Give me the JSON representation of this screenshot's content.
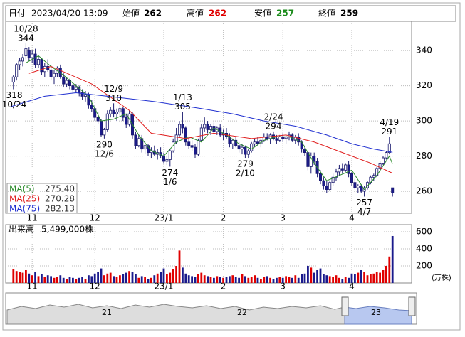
{
  "header": {
    "date_label": "日付",
    "datetime": "2023/04/20 13:09",
    "open_label": "始値",
    "open": 262,
    "high_label": "高値",
    "high": 262,
    "low_label": "安値",
    "low": 257,
    "close_label": "終値",
    "close": 259
  },
  "chart_data": {
    "type": "candlestick",
    "up_color": "#ffffff",
    "down_color": "#1a1a8c",
    "outline_color": "#1a1a6e",
    "xlim": [
      -2,
      123
    ],
    "xticks": [
      {
        "value": 6,
        "label": "11"
      },
      {
        "value": 26,
        "label": "12"
      },
      {
        "value": 48,
        "label": "23/1"
      },
      {
        "value": 67,
        "label": "2"
      },
      {
        "value": 86,
        "label": "3"
      },
      {
        "value": 108,
        "label": "4"
      }
    ],
    "ylim": [
      247.5,
      356.6
    ],
    "yticks": [
      260,
      280,
      300,
      320,
      340
    ],
    "grid": true,
    "ohlc": [
      [
        322,
        326,
        318,
        325
      ],
      [
        325,
        333,
        323,
        332
      ],
      [
        332,
        336,
        329,
        334
      ],
      [
        334,
        338,
        331,
        336
      ],
      [
        337,
        344,
        335,
        341
      ],
      [
        340,
        342,
        334,
        336
      ],
      [
        336,
        340,
        333,
        338
      ],
      [
        338,
        341,
        330,
        332
      ],
      [
        332,
        337,
        330,
        335
      ],
      [
        335,
        336,
        326,
        328
      ],
      [
        328,
        333,
        325,
        331
      ],
      [
        331,
        335,
        328,
        329
      ],
      [
        329,
        332,
        323,
        325
      ],
      [
        325,
        329,
        321,
        327
      ],
      [
        327,
        331,
        325,
        330
      ],
      [
        330,
        332,
        324,
        325
      ],
      [
        325,
        327,
        319,
        321
      ],
      [
        321,
        325,
        319,
        323
      ],
      [
        323,
        324,
        318,
        320
      ],
      [
        320,
        322,
        316,
        318
      ],
      [
        318,
        321,
        316,
        319
      ],
      [
        319,
        320,
        314,
        316
      ],
      [
        316,
        318,
        312,
        314
      ],
      [
        314,
        317,
        311,
        315
      ],
      [
        315,
        316,
        307,
        309
      ],
      [
        309,
        312,
        305,
        307
      ],
      [
        307,
        309,
        300,
        302
      ],
      [
        302,
        305,
        298,
        300
      ],
      [
        300,
        301,
        291,
        292
      ],
      [
        292,
        296,
        290,
        295
      ],
      [
        295,
        306,
        294,
        304
      ],
      [
        304,
        308,
        302,
        306
      ],
      [
        306,
        310,
        302,
        304
      ],
      [
        304,
        307,
        300,
        305
      ],
      [
        305,
        309,
        303,
        307
      ],
      [
        307,
        308,
        300,
        302
      ],
      [
        302,
        304,
        296,
        298
      ],
      [
        298,
        306,
        297,
        304
      ],
      [
        304,
        305,
        290,
        292
      ],
      [
        292,
        294,
        284,
        286
      ],
      [
        286,
        292,
        285,
        290
      ],
      [
        290,
        292,
        282,
        284
      ],
      [
        284,
        288,
        281,
        286
      ],
      [
        286,
        287,
        280,
        282
      ],
      [
        282,
        285,
        279,
        283
      ],
      [
        283,
        286,
        280,
        281
      ],
      [
        281,
        284,
        278,
        282
      ],
      [
        282,
        285,
        279,
        280
      ],
      [
        280,
        282,
        276,
        277
      ],
      [
        277,
        280,
        275,
        278
      ],
      [
        278,
        284,
        274,
        283
      ],
      [
        283,
        290,
        282,
        288
      ],
      [
        288,
        296,
        287,
        292
      ],
      [
        292,
        300,
        291,
        298
      ],
      [
        298,
        305,
        293,
        296
      ],
      [
        296,
        297,
        286,
        288
      ],
      [
        288,
        291,
        284,
        286
      ],
      [
        286,
        289,
        283,
        285
      ],
      [
        285,
        287,
        279,
        281
      ],
      [
        281,
        290,
        280,
        289
      ],
      [
        289,
        298,
        288,
        296
      ],
      [
        296,
        302,
        294,
        298
      ],
      [
        298,
        300,
        293,
        295
      ],
      [
        295,
        298,
        292,
        297
      ],
      [
        297,
        299,
        293,
        294
      ],
      [
        294,
        297,
        292,
        296
      ],
      [
        296,
        298,
        291,
        292
      ],
      [
        292,
        295,
        289,
        293
      ],
      [
        293,
        296,
        290,
        291
      ],
      [
        291,
        293,
        285,
        287
      ],
      [
        287,
        290,
        284,
        289
      ],
      [
        289,
        291,
        285,
        286
      ],
      [
        286,
        288,
        282,
        284
      ],
      [
        284,
        287,
        281,
        285
      ],
      [
        285,
        286,
        279,
        281
      ],
      [
        281,
        284,
        279,
        283
      ],
      [
        283,
        288,
        282,
        287
      ],
      [
        287,
        290,
        285,
        288
      ],
      [
        288,
        291,
        286,
        287
      ],
      [
        287,
        290,
        285,
        289
      ],
      [
        289,
        293,
        288,
        291
      ],
      [
        291,
        293,
        289,
        290
      ],
      [
        290,
        293,
        287,
        292
      ],
      [
        292,
        294,
        289,
        290
      ],
      [
        290,
        292,
        287,
        289
      ],
      [
        289,
        292,
        288,
        291
      ],
      [
        291,
        293,
        288,
        290
      ],
      [
        290,
        292,
        287,
        291
      ],
      [
        291,
        294,
        289,
        292
      ],
      [
        292,
        293,
        288,
        289
      ],
      [
        289,
        292,
        287,
        291
      ],
      [
        291,
        293,
        286,
        288
      ],
      [
        288,
        289,
        282,
        284
      ],
      [
        284,
        286,
        280,
        282
      ],
      [
        282,
        283,
        272,
        274
      ],
      [
        274,
        282,
        270,
        280
      ],
      [
        280,
        282,
        275,
        277
      ],
      [
        277,
        279,
        268,
        270
      ],
      [
        270,
        272,
        264,
        266
      ],
      [
        266,
        268,
        261,
        263
      ],
      [
        263,
        266,
        259,
        261
      ],
      [
        261,
        266,
        260,
        265
      ],
      [
        265,
        270,
        263,
        268
      ],
      [
        268,
        273,
        266,
        271
      ],
      [
        271,
        275,
        269,
        273
      ],
      [
        273,
        276,
        270,
        272
      ],
      [
        272,
        276,
        271,
        275
      ],
      [
        275,
        277,
        268,
        270
      ],
      [
        270,
        271,
        263,
        265
      ],
      [
        265,
        267,
        261,
        262
      ],
      [
        262,
        264,
        259,
        263
      ],
      [
        263,
        264,
        259,
        260
      ],
      [
        260,
        263,
        257,
        262
      ],
      [
        262,
        266,
        261,
        265
      ],
      [
        265,
        269,
        264,
        268
      ],
      [
        268,
        270,
        266,
        269
      ],
      [
        269,
        274,
        268,
        273
      ],
      [
        273,
        277,
        272,
        276
      ],
      [
        276,
        280,
        275,
        279
      ],
      [
        279,
        283,
        278,
        282
      ],
      [
        282,
        291,
        281,
        287
      ],
      [
        262,
        262,
        257,
        259
      ]
    ],
    "annotations": [
      {
        "index": 4,
        "at": "high",
        "lines": [
          "10/28",
          "344"
        ],
        "value": 344
      },
      {
        "index": 0,
        "at": "low",
        "lines": [
          "318",
          "10/24"
        ],
        "value": 318
      },
      {
        "index": 32,
        "at": "high",
        "lines": [
          "12/9",
          "310"
        ],
        "value": 310
      },
      {
        "index": 29,
        "at": "low",
        "lines": [
          "290",
          "12/6"
        ],
        "value": 290
      },
      {
        "index": 54,
        "at": "high",
        "lines": [
          "1/13",
          "305"
        ],
        "value": 305
      },
      {
        "index": 50,
        "at": "low",
        "lines": [
          "274",
          "1/6"
        ],
        "value": 274
      },
      {
        "index": 83,
        "at": "high",
        "lines": [
          "2/24",
          "294"
        ],
        "value": 294
      },
      {
        "index": 74,
        "at": "low",
        "lines": [
          "279",
          "2/10"
        ],
        "value": 279
      },
      {
        "index": 120,
        "at": "high",
        "lines": [
          "4/19",
          "291"
        ],
        "value": 291
      },
      {
        "index": 112,
        "at": "low",
        "lines": [
          "257",
          "4/7"
        ],
        "value": 257
      }
    ],
    "series": [
      {
        "name": "MA(5)",
        "color": "#2a8a2a",
        "last_label": "275.40",
        "x": [
          4,
          8,
          12,
          16,
          20,
          24,
          28,
          32,
          36,
          40,
          44,
          48,
          52,
          56,
          60,
          64,
          68,
          72,
          76,
          80,
          84,
          88,
          92,
          96,
          100,
          104,
          108,
          112,
          116,
          120,
          121
        ],
        "values": [
          333,
          337,
          331,
          326,
          320,
          314,
          300,
          301,
          304,
          292,
          283,
          280,
          288,
          291,
          288,
          296,
          292,
          287,
          284,
          289,
          291,
          291,
          288,
          276,
          266,
          269,
          272,
          261,
          269,
          280,
          275.4
        ]
      },
      {
        "name": "MA(25)",
        "color": "#e02020",
        "last_label": "270.28",
        "x": [
          5,
          12,
          25,
          37,
          44,
          55,
          64,
          76,
          87,
          96,
          105,
          114,
          121
        ],
        "values": [
          327,
          331,
          321,
          306,
          293,
          290,
          293,
          290,
          292,
          288,
          282,
          276,
          270.28
        ]
      },
      {
        "name": "MA(75)",
        "color": "#2030d0",
        "last_label": "282.13",
        "x": [
          -1,
          10,
          20,
          30,
          45,
          60,
          70,
          80,
          90,
          100,
          108,
          115,
          121
        ],
        "values": [
          308,
          314,
          316,
          314,
          311,
          307,
          304,
          300,
          297,
          292,
          287,
          284,
          282.13
        ]
      }
    ],
    "volume": {
      "label": "出来高",
      "total_text": "5,499,000株",
      "unit": "(万株)",
      "ylim": [
        0,
        683
      ],
      "yticks": [
        200,
        400,
        600
      ],
      "up_color": "#e00000",
      "down_color": "#1a1a8c",
      "values": [
        160,
        140,
        130,
        120,
        150,
        110,
        90,
        130,
        80,
        100,
        70,
        90,
        80,
        60,
        70,
        90,
        60,
        50,
        70,
        60,
        50,
        60,
        70,
        50,
        90,
        80,
        110,
        130,
        170,
        90,
        110,
        120,
        80,
        70,
        90,
        100,
        120,
        140,
        130,
        100,
        60,
        80,
        70,
        50,
        60,
        90,
        110,
        130,
        170,
        100,
        120,
        160,
        200,
        380,
        180,
        110,
        90,
        80,
        70,
        100,
        120,
        90,
        80,
        70,
        60,
        80,
        70,
        60,
        70,
        80,
        90,
        70,
        60,
        100,
        80,
        60,
        70,
        90,
        60,
        50,
        70,
        80,
        60,
        50,
        60,
        70,
        60,
        80,
        70,
        60,
        90,
        60,
        100,
        110,
        200,
        180,
        120,
        150,
        170,
        100,
        90,
        80,
        70,
        90,
        60,
        50,
        70,
        60,
        110,
        100,
        120,
        150,
        130,
        90,
        100,
        110,
        130,
        120,
        150,
        200,
        310,
        549.9
      ]
    }
  },
  "navigator": {
    "labels": [
      "21",
      "22",
      "23"
    ]
  }
}
